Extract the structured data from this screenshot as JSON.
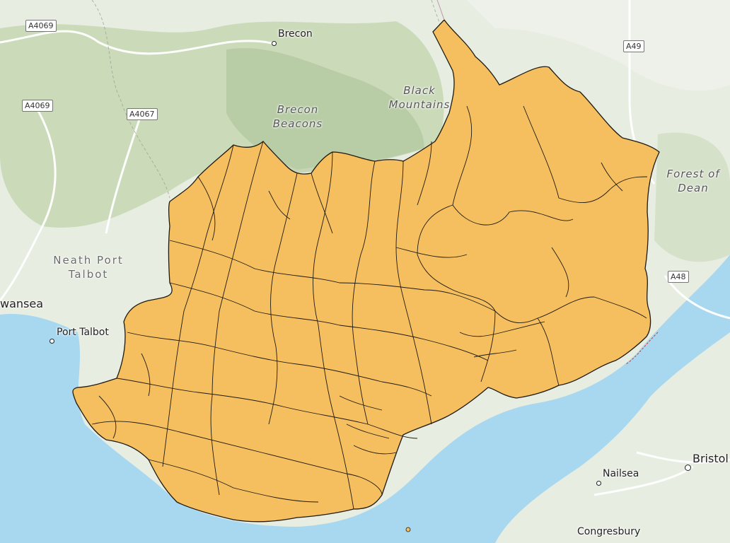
{
  "places": {
    "brecon": "Brecon",
    "brecon_beacons_1": "Brecon",
    "brecon_beacons_2": "Beacons",
    "black_mountains_1": "Black",
    "black_mountains_2": "Mountains",
    "neath_port_talbot_1": "Neath Port",
    "neath_port_talbot_2": "Talbot",
    "swansea": "wansea",
    "port_talbot": "Port Talbot",
    "forest_of_dean_1": "Forest of",
    "forest_of_dean_2": "Dean",
    "bristol": "Bristol",
    "nailsea": "Nailsea",
    "congresbury": "Congresbury"
  },
  "roads": {
    "a4069_top": "A4069",
    "a4069_mid": "A4069",
    "a4067": "A4067",
    "a49": "A49",
    "a48": "A48"
  },
  "colors": {
    "land": "#e6ecdf",
    "hills": "#b9cfa6",
    "water": "#a8d8f0",
    "region_fill": "#f5bf60",
    "region_border": "#1f1a10"
  }
}
